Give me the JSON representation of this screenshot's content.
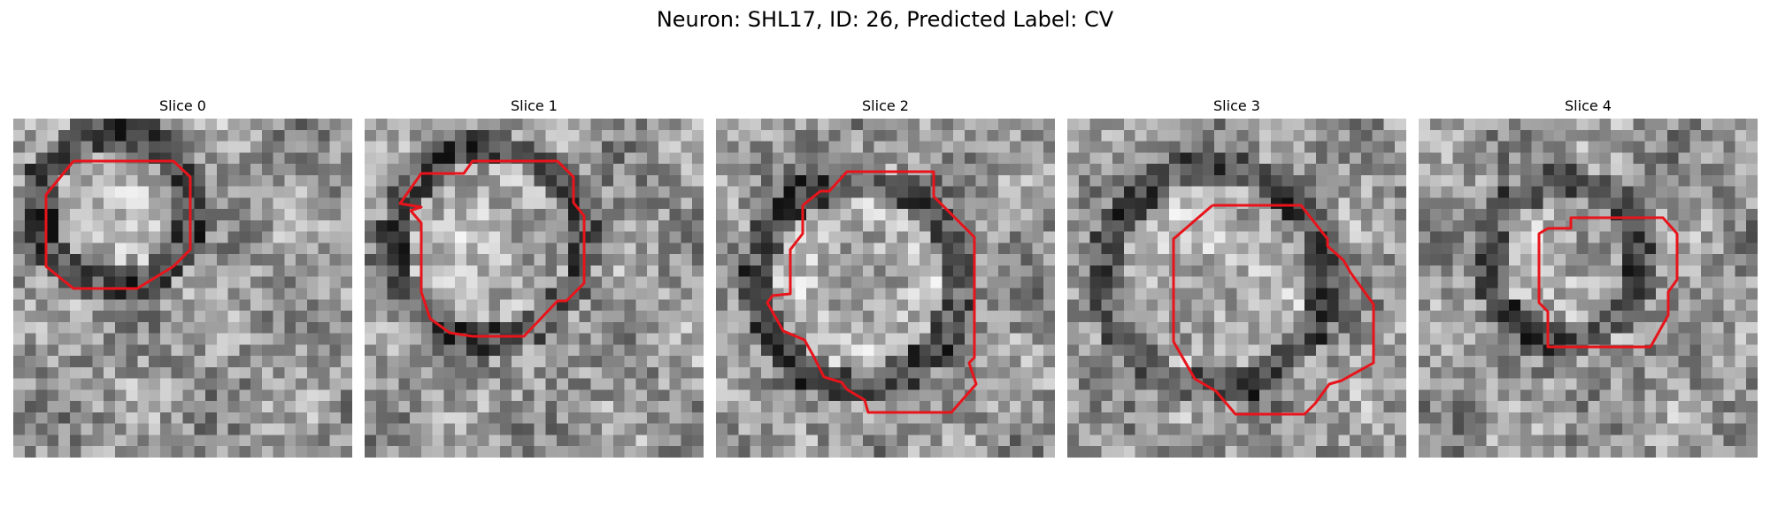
{
  "figure": {
    "title": "Neuron: SHL17, ID: 26, Predicted Label: CV",
    "contour_color": "#e8141b",
    "panels": [
      {
        "title": "Slice 0"
      },
      {
        "title": "Slice 1"
      },
      {
        "title": "Slice 2"
      },
      {
        "title": "Slice 3"
      },
      {
        "title": "Slice 4"
      }
    ]
  }
}
